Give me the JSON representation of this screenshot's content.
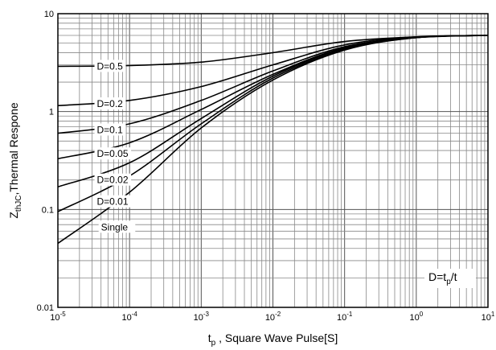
{
  "chart_data": {
    "type": "line",
    "xscale": "log",
    "yscale": "log",
    "xlim": [
      1e-05,
      10
    ],
    "ylim": [
      0.01,
      10
    ],
    "grid": true,
    "x_ticks": [
      {
        "value": 1e-05,
        "base": "10",
        "exp": "-5"
      },
      {
        "value": 0.0001,
        "base": "10",
        "exp": "-4"
      },
      {
        "value": 0.001,
        "base": "10",
        "exp": "-3"
      },
      {
        "value": 0.01,
        "base": "10",
        "exp": "-2"
      },
      {
        "value": 0.1,
        "base": "10",
        "exp": "-1"
      },
      {
        "value": 1,
        "base": "10",
        "exp": "0"
      },
      {
        "value": 10,
        "base": "10",
        "exp": "1"
      }
    ],
    "y_ticks": [
      {
        "value": 0.01,
        "label": "0.01"
      },
      {
        "value": 0.1,
        "label": "0.1"
      },
      {
        "value": 1,
        "label": "1"
      },
      {
        "value": 10,
        "label": "10"
      }
    ],
    "xlabel": {
      "main": "t",
      "sub": "p",
      "rest": " ,  Square Wave Pulse[S]"
    },
    "ylabel": {
      "main": "Z",
      "sub": "thJC",
      "rest": ",Thermal Respone"
    },
    "annotation": {
      "pre": "D=t",
      "sub": "p",
      "post": "/t"
    },
    "series": [
      {
        "name": "D=0.5",
        "x": [
          1e-05,
          0.0001,
          0.001,
          0.01,
          0.1,
          1,
          10
        ],
        "y": [
          2.9,
          2.95,
          3.2,
          4.0,
          5.2,
          5.8,
          6.0
        ]
      },
      {
        "name": "D=0.2",
        "x": [
          1e-05,
          0.0001,
          0.001,
          0.01,
          0.1,
          1,
          10
        ],
        "y": [
          1.15,
          1.3,
          1.8,
          3.0,
          4.8,
          5.8,
          6.0
        ]
      },
      {
        "name": "D=0.1",
        "x": [
          1e-05,
          0.0001,
          0.001,
          0.01,
          0.1,
          1,
          10
        ],
        "y": [
          0.6,
          0.75,
          1.3,
          2.6,
          4.6,
          5.7,
          6.0
        ]
      },
      {
        "name": "D=0.05",
        "x": [
          1e-05,
          0.0001,
          0.001,
          0.01,
          0.1,
          1,
          10
        ],
        "y": [
          0.33,
          0.48,
          1.05,
          2.4,
          4.5,
          5.7,
          6.0
        ]
      },
      {
        "name": "D=0.02",
        "x": [
          1e-05,
          0.0001,
          0.001,
          0.01,
          0.1,
          1,
          10
        ],
        "y": [
          0.17,
          0.3,
          0.85,
          2.3,
          4.4,
          5.7,
          6.0
        ]
      },
      {
        "name": "D=0.01",
        "x": [
          1e-05,
          0.0001,
          0.001,
          0.01,
          0.1,
          1,
          10
        ],
        "y": [
          0.095,
          0.22,
          0.75,
          2.2,
          4.3,
          5.7,
          6.0
        ]
      },
      {
        "name": "Single",
        "x": [
          1e-05,
          0.0001,
          0.001,
          0.01,
          0.1,
          1,
          10
        ],
        "y": [
          0.045,
          0.15,
          0.68,
          2.1,
          4.25,
          5.7,
          6.0
        ]
      }
    ],
    "curve_labels": [
      {
        "text": "D=0.5",
        "x": 3.5e-05,
        "y": 2.9
      },
      {
        "text": "D=0.2",
        "x": 3.5e-05,
        "y": 1.2
      },
      {
        "text": "D=0.1",
        "x": 3.5e-05,
        "y": 0.65
      },
      {
        "text": "D=0.05",
        "x": 3.5e-05,
        "y": 0.37
      },
      {
        "text": "D=0.02",
        "x": 3.5e-05,
        "y": 0.2
      },
      {
        "text": "D=0.01",
        "x": 3.5e-05,
        "y": 0.12
      },
      {
        "text": "Single",
        "x": 4e-05,
        "y": 0.066
      }
    ]
  }
}
